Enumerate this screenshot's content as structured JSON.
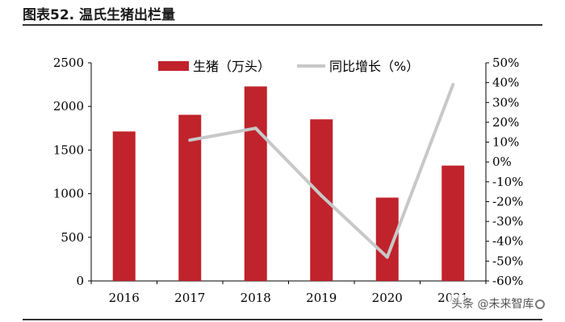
{
  "figure_title": "图表52. 温氏生猪出栏量",
  "watermark_text": "头条 @未来智库",
  "chart_data": {
    "type": "bar",
    "categories": [
      "2016",
      "2017",
      "2018",
      "2019",
      "2020",
      "2021"
    ],
    "series": [
      {
        "name": "生猪（万头）",
        "kind": "bar",
        "axis": "left",
        "color": "#C0232B",
        "values": [
          1713,
          1904,
          2229,
          1852,
          955,
          1322
        ]
      },
      {
        "name": "同比增长（%）",
        "kind": "line",
        "axis": "right",
        "color": "#C8C8C8",
        "values": [
          null,
          11,
          17,
          -17,
          -48,
          39
        ]
      }
    ],
    "y_left": {
      "min": 0,
      "max": 2500,
      "ticks": [
        0,
        500,
        1000,
        1500,
        2000,
        2500
      ]
    },
    "y_right": {
      "min": -60,
      "max": 50,
      "ticks": [
        -60,
        -50,
        -40,
        -30,
        -20,
        -10,
        0,
        10,
        20,
        30,
        40,
        50
      ],
      "unit": "%"
    },
    "legend_position": "top-center",
    "grid": false
  }
}
